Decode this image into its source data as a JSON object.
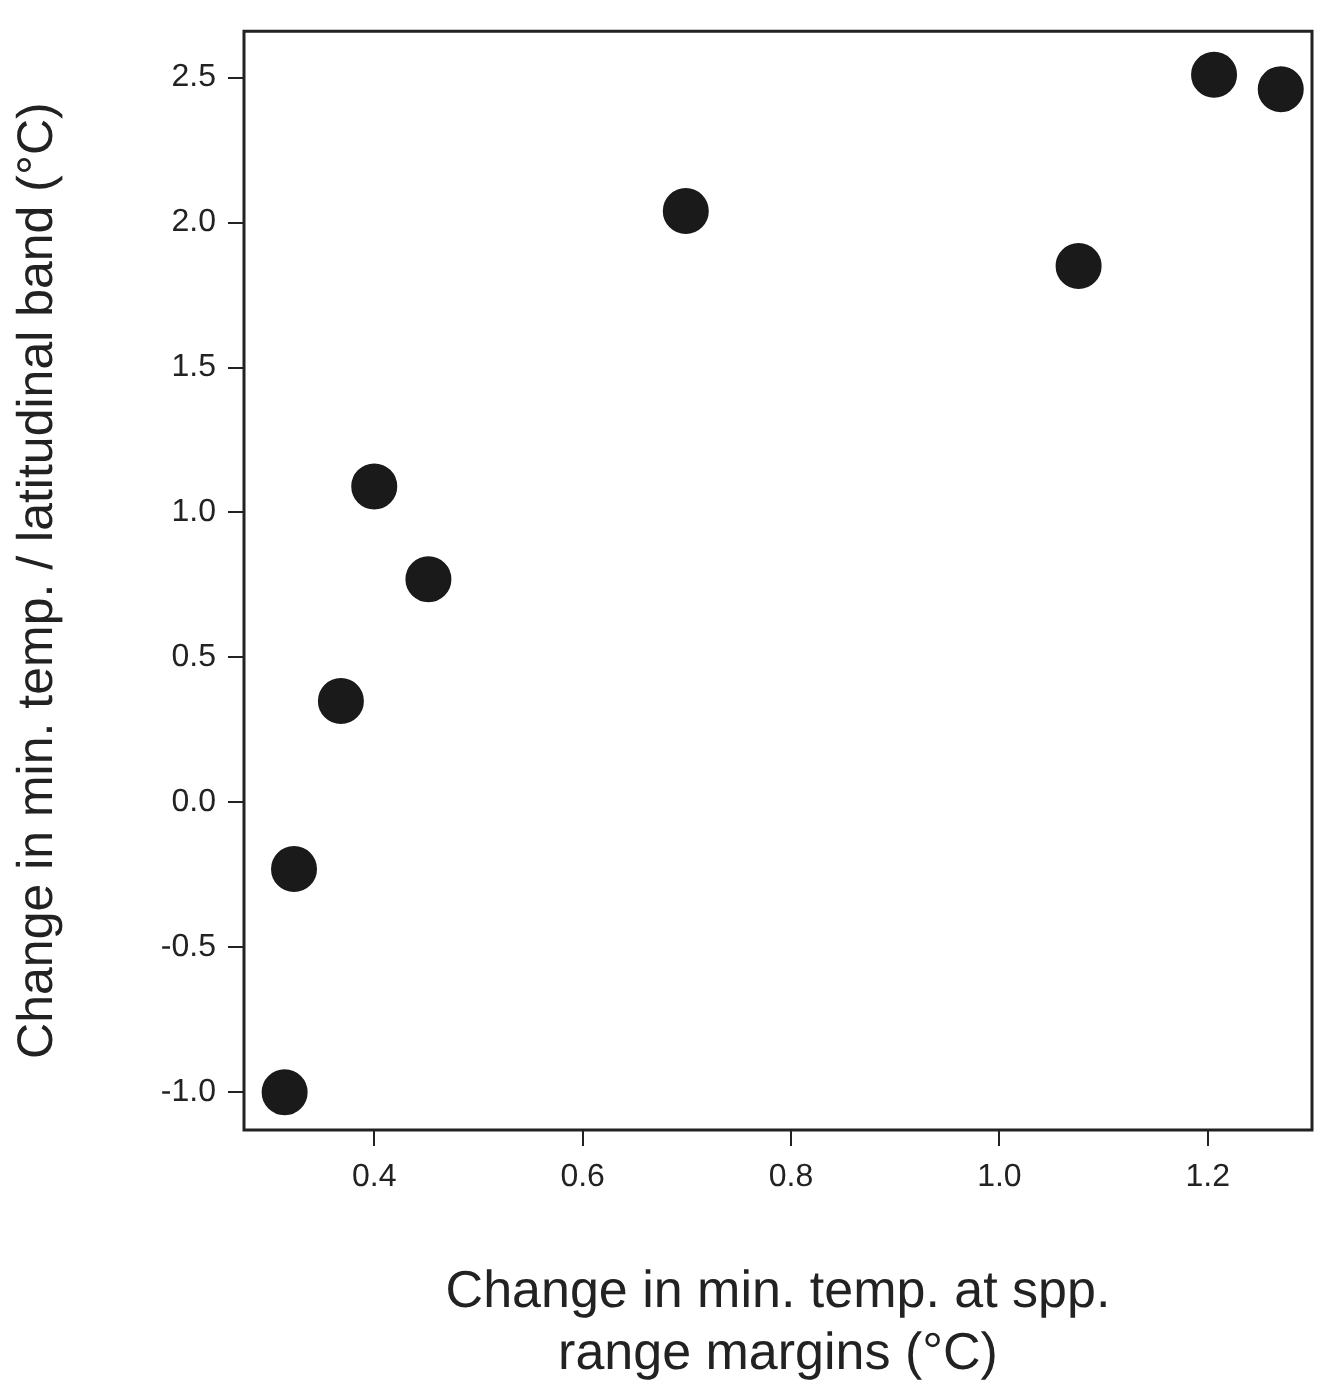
{
  "chart_data": {
    "type": "scatter",
    "xlabel": "Change in min. temp. at spp. range margins (°C)",
    "ylabel": "Change in min. temp. / latitudinal band (°C)",
    "x": [
      0.314,
      0.323,
      0.368,
      0.4,
      0.452,
      0.699,
      1.076,
      1.206,
      1.27
    ],
    "series": [
      {
        "color": "#1a1a1a",
        "values": [
          -1.0,
          -0.23,
          0.35,
          1.09,
          0.77,
          2.04,
          1.85,
          2.51,
          2.46
        ]
      }
    ],
    "xlim": [
      0.275,
      1.3
    ],
    "xticks": [
      0.4,
      0.6,
      0.8,
      {
        "value": 1,
        "label": "1.0"
      },
      1.2
    ],
    "ylim": [
      -1.13,
      2.66
    ],
    "yticks": [
      {
        "value": -1,
        "label": "-1.0"
      },
      -0.5,
      {
        "value": 0,
        "label": "0.0"
      },
      0.5,
      {
        "value": 1,
        "label": "1.0"
      },
      1.5,
      {
        "value": 2,
        "label": "2.0"
      },
      2.5
    ],
    "grid": false,
    "legend": false,
    "marker": "circle"
  }
}
